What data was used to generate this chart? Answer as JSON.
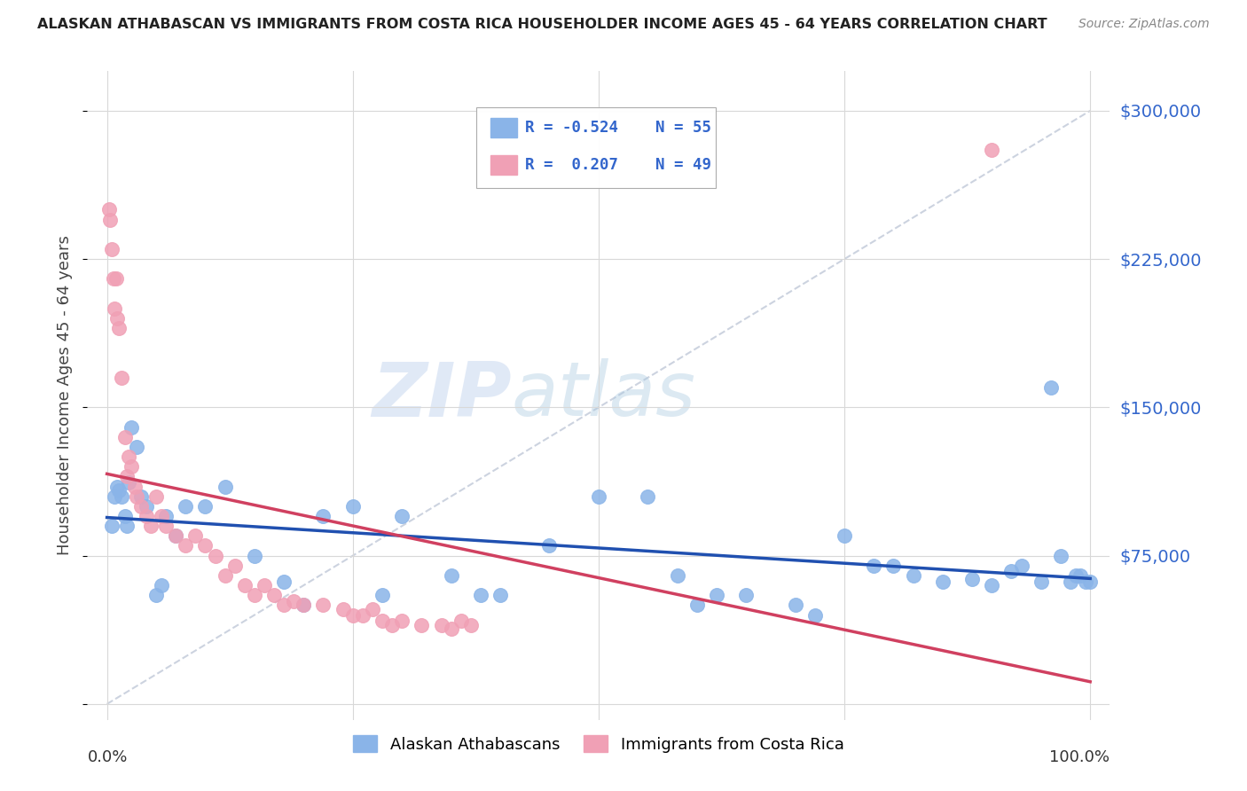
{
  "title": "ALASKAN ATHABASCAN VS IMMIGRANTS FROM COSTA RICA HOUSEHOLDER INCOME AGES 45 - 64 YEARS CORRELATION CHART",
  "source": "Source: ZipAtlas.com",
  "ylabel": "Householder Income Ages 45 - 64 years",
  "y_ticks": [
    0,
    75000,
    150000,
    225000,
    300000
  ],
  "y_tick_labels": [
    "",
    "$75,000",
    "$150,000",
    "$225,000",
    "$300,000"
  ],
  "legend_label1": "Alaskan Athabascans",
  "legend_label2": "Immigrants from Costa Rica",
  "color_blue": "#8ab4e8",
  "color_pink": "#f0a0b5",
  "color_blue_line": "#2050b0",
  "color_pink_line": "#d04060",
  "color_diag": "#c0c8d8",
  "blue_x": [
    0.5,
    0.8,
    1.0,
    1.2,
    1.5,
    1.8,
    2.0,
    2.2,
    2.5,
    3.0,
    3.5,
    4.0,
    5.0,
    5.5,
    6.0,
    7.0,
    8.0,
    10.0,
    12.0,
    15.0,
    18.0,
    20.0,
    22.0,
    25.0,
    28.0,
    30.0,
    35.0,
    38.0,
    40.0,
    45.0,
    50.0,
    55.0,
    58.0,
    60.0,
    62.0,
    65.0,
    70.0,
    72.0,
    75.0,
    78.0,
    80.0,
    82.0,
    85.0,
    88.0,
    90.0,
    92.0,
    93.0,
    95.0,
    96.0,
    97.0,
    98.0,
    98.5,
    99.0,
    99.5,
    100.0
  ],
  "blue_y": [
    90000,
    105000,
    110000,
    108000,
    105000,
    95000,
    90000,
    112000,
    140000,
    130000,
    105000,
    100000,
    55000,
    60000,
    95000,
    85000,
    100000,
    100000,
    110000,
    75000,
    62000,
    50000,
    95000,
    100000,
    55000,
    95000,
    65000,
    55000,
    55000,
    80000,
    105000,
    105000,
    65000,
    50000,
    55000,
    55000,
    50000,
    45000,
    85000,
    70000,
    70000,
    65000,
    62000,
    63000,
    60000,
    67000,
    70000,
    62000,
    160000,
    75000,
    62000,
    65000,
    65000,
    62000,
    62000
  ],
  "pink_x": [
    0.2,
    0.3,
    0.5,
    0.7,
    0.8,
    0.9,
    1.0,
    1.2,
    1.5,
    1.8,
    2.0,
    2.2,
    2.5,
    2.8,
    3.0,
    3.5,
    4.0,
    4.5,
    5.0,
    5.5,
    6.0,
    7.0,
    8.0,
    9.0,
    10.0,
    11.0,
    12.0,
    13.0,
    14.0,
    15.0,
    16.0,
    17.0,
    18.0,
    19.0,
    20.0,
    22.0,
    24.0,
    25.0,
    26.0,
    27.0,
    28.0,
    29.0,
    30.0,
    32.0,
    34.0,
    35.0,
    36.0,
    37.0,
    90.0
  ],
  "pink_y": [
    250000,
    245000,
    230000,
    215000,
    200000,
    215000,
    195000,
    190000,
    165000,
    135000,
    115000,
    125000,
    120000,
    110000,
    105000,
    100000,
    95000,
    90000,
    105000,
    95000,
    90000,
    85000,
    80000,
    85000,
    80000,
    75000,
    65000,
    70000,
    60000,
    55000,
    60000,
    55000,
    50000,
    52000,
    50000,
    50000,
    48000,
    45000,
    45000,
    48000,
    42000,
    40000,
    42000,
    40000,
    40000,
    38000,
    42000,
    40000,
    280000
  ]
}
